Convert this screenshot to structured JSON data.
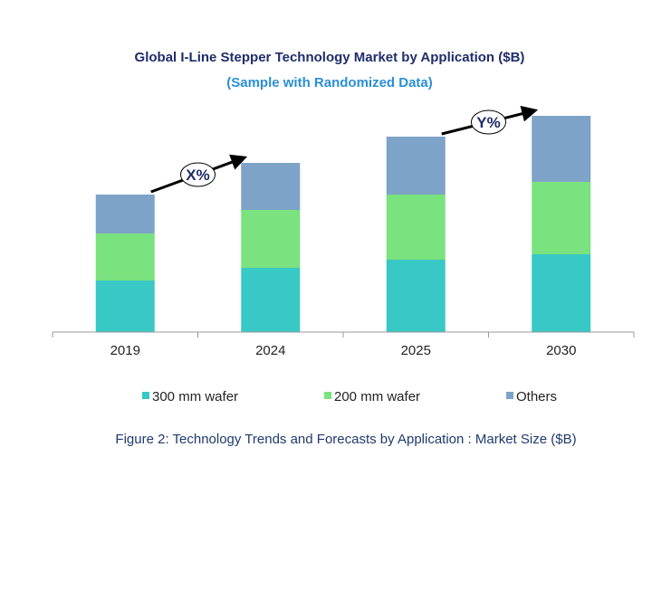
{
  "chart_data": {
    "type": "bar",
    "stacked": true,
    "title": "Global I-Line  Stepper Technology Market by Application ($B)",
    "subtitle": "(Sample with Randomized Data)",
    "caption": "Figure 2: Technology  Trends  and Forecasts by Application : Market Size ($B)",
    "categories": [
      "2019",
      "2024",
      "2025",
      "2030"
    ],
    "series": [
      {
        "name": "300 mm wafer",
        "color": "#38c8c5",
        "values": [
          57,
          71,
          80,
          86
        ]
      },
      {
        "name": "200 mm wafer",
        "color": "#7ae27e",
        "values": [
          52,
          64,
          72,
          80
        ]
      },
      {
        "name": "Others",
        "color": "#7ea3c8",
        "values": [
          43,
          52,
          64,
          73
        ]
      }
    ],
    "y_axis_shown": false,
    "grid": false,
    "legend_position": "bottom",
    "annotations": [
      {
        "label": "X%",
        "from": "2019",
        "to": "2024"
      },
      {
        "label": "Y%",
        "from": "2025",
        "to": "2030"
      }
    ],
    "colors": {
      "title": "#1f2d6b",
      "subtitle": "#2a8fd6",
      "caption": "#1f3a6e"
    }
  }
}
